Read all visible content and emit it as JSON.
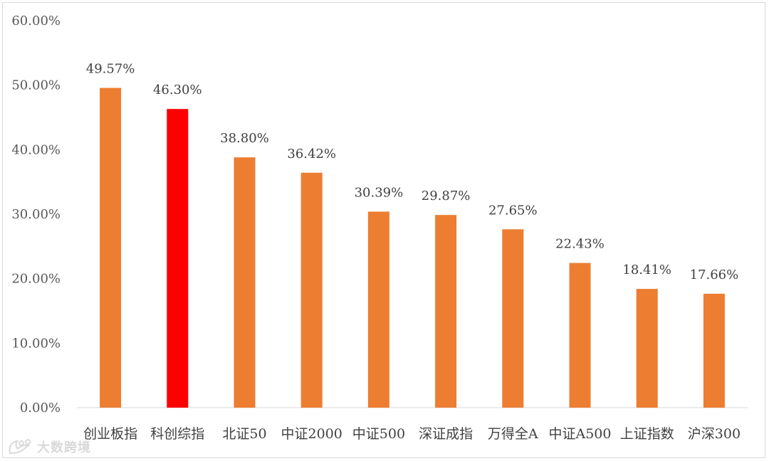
{
  "chart_data": {
    "type": "bar",
    "title": "",
    "xlabel": "",
    "ylabel": "",
    "categories": [
      "创业板指",
      "科创综指",
      "北证50",
      "中证2000",
      "中证500",
      "深证成指",
      "万得全A",
      "中证A500",
      "上证指数",
      "沪深300"
    ],
    "values": [
      49.57,
      46.3,
      38.8,
      36.42,
      30.39,
      29.87,
      27.65,
      22.43,
      18.41,
      17.66
    ],
    "data_labels": [
      "49.57%",
      "46.30%",
      "38.80%",
      "36.42%",
      "30.39%",
      "29.87%",
      "27.65%",
      "22.43%",
      "18.41%",
      "17.66%"
    ],
    "ylim": [
      0,
      60
    ],
    "yticks": [
      0,
      10,
      20,
      30,
      40,
      50,
      60
    ],
    "ytick_labels": [
      "0.00%",
      "10.00%",
      "20.00%",
      "30.00%",
      "40.00%",
      "50.00%",
      "60.00%"
    ],
    "grid": false,
    "legend": "none",
    "colors": {
      "default": "#ED7D31",
      "highlight": "#FF0000",
      "highlight_category": "科创综指",
      "axis": "#d9d9d9"
    }
  },
  "watermark": {
    "text": "大数跨境",
    "icon": "bird-logo-icon"
  }
}
